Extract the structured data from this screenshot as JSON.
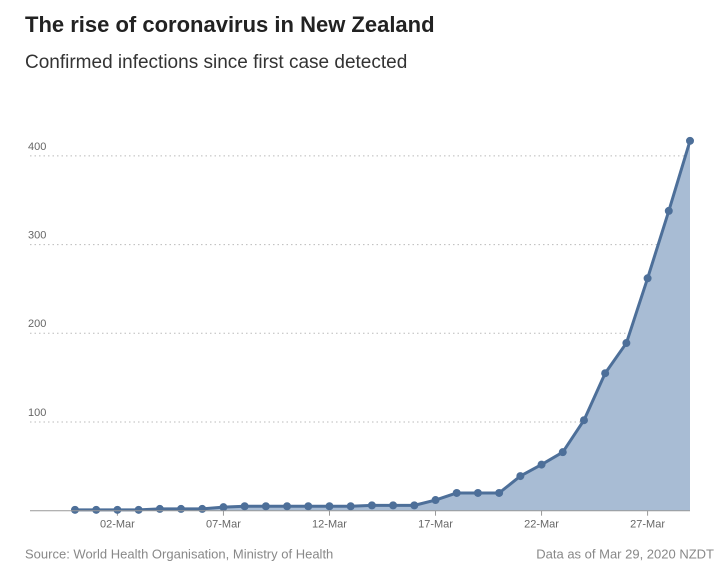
{
  "chart_data": {
    "type": "area",
    "title": "The rise of coronavirus in New Zealand",
    "subtitle": "Confirmed infections since first case detected",
    "source": "Source: World Health Organisation, Ministry of Health",
    "note": "Data as of Mar 29, 2020 NZDT",
    "categories": [
      null,
      null,
      "02-Mar",
      null,
      null,
      null,
      null,
      "07-Mar",
      null,
      null,
      null,
      null,
      "12-Mar",
      null,
      null,
      null,
      null,
      "17-Mar",
      null,
      null,
      null,
      null,
      "22-Mar",
      null,
      null,
      null,
      null,
      "27-Mar",
      null,
      null
    ],
    "series": [
      {
        "name": "Confirmed infections",
        "color": "#4d6f99",
        "values": [
          1,
          1,
          1,
          1,
          2,
          2,
          2,
          4,
          5,
          5,
          5,
          5,
          5,
          5,
          6,
          6,
          6,
          12,
          20,
          20,
          20,
          39,
          52,
          66,
          102,
          155,
          189,
          262,
          338,
          417
        ]
      }
    ],
    "area_color": "#a8bcd4",
    "ylim": [
      0,
      430
    ],
    "yticks": [
      100,
      200,
      300,
      400
    ],
    "grid": true
  }
}
